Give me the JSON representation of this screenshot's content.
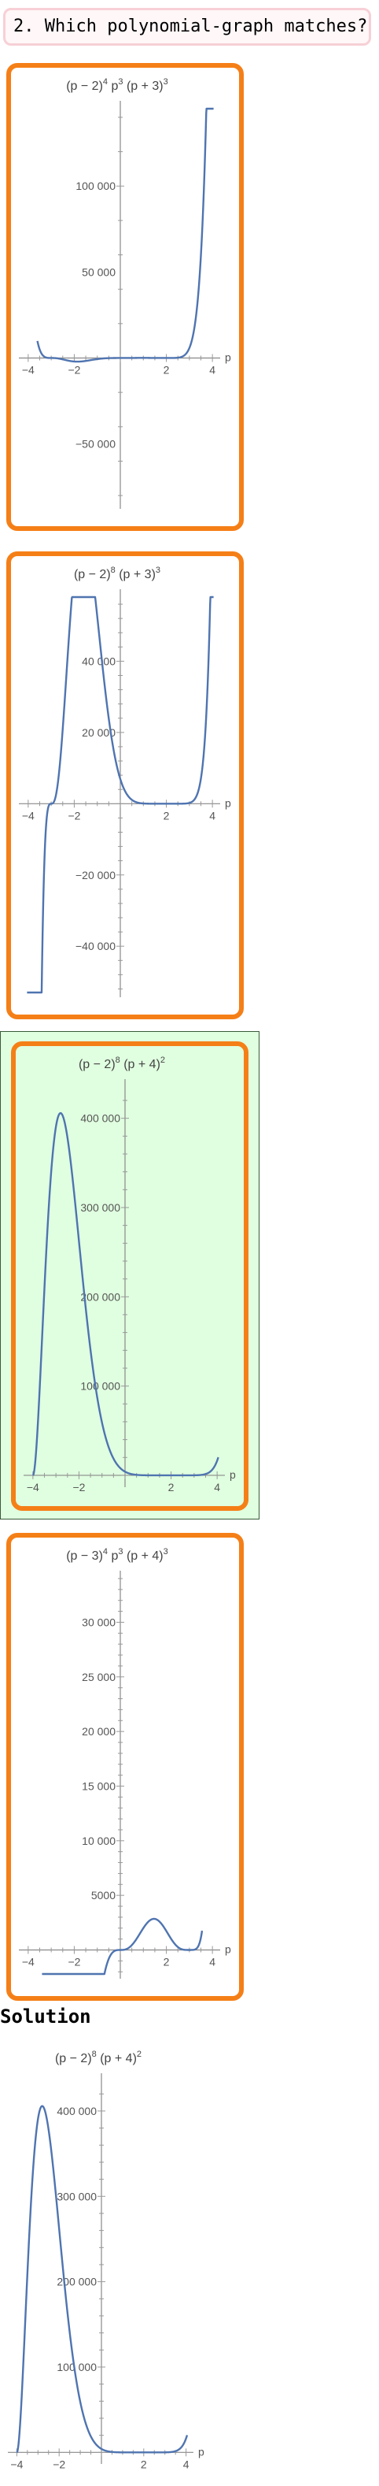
{
  "question": {
    "label": "2. Which polynomial-graph matches?"
  },
  "solution": {
    "label": "Solution"
  },
  "chart_data": [
    {
      "type": "line",
      "id": "option-1",
      "title_parts": [
        "(p − 2)",
        "4",
        " p",
        "3",
        " (p + 3)",
        "3"
      ],
      "xlabel": "p",
      "xlim": [
        -4.2,
        4.2
      ],
      "ylim": [
        -85000,
        145000
      ],
      "curve_domain": [
        -3.6,
        4.05
      ],
      "xticks": [
        -4,
        -2,
        2,
        4
      ],
      "xtick_labels": [
        "−4",
        "−2",
        "2",
        "4"
      ],
      "yticks": [
        -50000,
        50000,
        100000
      ],
      "ytick_labels": [
        "−50 000",
        "50 000",
        "100 000"
      ],
      "series": [
        {
          "expr": "(p-2)^4 p^3 (p+3)^3"
        }
      ]
    },
    {
      "type": "line",
      "id": "option-2",
      "title_parts": [
        "(p − 2)",
        "8",
        " (p + 3)",
        "3"
      ],
      "xlabel": "p",
      "xlim": [
        -4.2,
        4.2
      ],
      "ylim": [
        -53000,
        58000
      ],
      "curve_domain": [
        -4.05,
        4.05
      ],
      "xticks": [
        -4,
        -2,
        2,
        4
      ],
      "xtick_labels": [
        "−4",
        "−2",
        "2",
        "4"
      ],
      "yticks": [
        -40000,
        -20000,
        20000,
        40000
      ],
      "ytick_labels": [
        "−40 000",
        "−20 000",
        "20 000",
        "40 000"
      ],
      "series": [
        {
          "expr": "(p-2)^8 (p+3)^3"
        }
      ]
    },
    {
      "type": "line",
      "id": "option-3",
      "title_parts": [
        "(p − 2)",
        "8",
        " (p + 4)",
        "2"
      ],
      "xlabel": "p",
      "xlim": [
        -4.2,
        4.2
      ],
      "ylim": [
        -8000,
        435000
      ],
      "curve_domain": [
        -4.0,
        4.05
      ],
      "xticks": [
        -4,
        -2,
        2,
        4
      ],
      "xtick_labels": [
        "−4",
        "−2",
        "2",
        "4"
      ],
      "yticks": [
        100000,
        200000,
        300000,
        400000
      ],
      "ytick_labels": [
        "100 000",
        "200 000",
        "300 000",
        "400 000"
      ],
      "series": [
        {
          "expr": "(p-2)^8 (p+4)^2"
        }
      ]
    },
    {
      "type": "line",
      "id": "option-4",
      "title_parts": [
        "(p − 3)",
        "4",
        " p",
        "3",
        " (p + 4)",
        "3"
      ],
      "xlabel": "p",
      "xlim": [
        -4.2,
        4.2
      ],
      "ylim": [
        -2200,
        34000
      ],
      "curve_domain": [
        -3.4,
        3.55
      ],
      "xticks": [
        -4,
        -2,
        2,
        4
      ],
      "xtick_labels": [
        "−4",
        "−2",
        "2",
        "4"
      ],
      "yticks": [
        5000,
        10000,
        15000,
        20000,
        25000,
        30000
      ],
      "ytick_labels": [
        "5000",
        "10 000",
        "15 000",
        "20 000",
        "25 000",
        "30 000"
      ],
      "series": [
        {
          "expr": "(p-3)^4 p^3 (p+4)^3"
        }
      ]
    },
    {
      "type": "line",
      "id": "solution",
      "title_parts": [
        "(p − 2)",
        "8",
        " (p + 4)",
        "2"
      ],
      "xlabel": "p",
      "xlim": [
        -4.2,
        4.2
      ],
      "ylim": [
        -8000,
        435000
      ],
      "curve_domain": [
        -4.0,
        4.05
      ],
      "xticks": [
        -4,
        -2,
        2,
        4
      ],
      "xtick_labels": [
        "−4",
        "−2",
        "2",
        "4"
      ],
      "yticks": [
        100000,
        200000,
        300000,
        400000
      ],
      "ytick_labels": [
        "100 000",
        "200 000",
        "300 000",
        "400 000"
      ],
      "series": [
        {
          "expr": "(p-2)^8 (p+4)^2"
        }
      ]
    }
  ]
}
